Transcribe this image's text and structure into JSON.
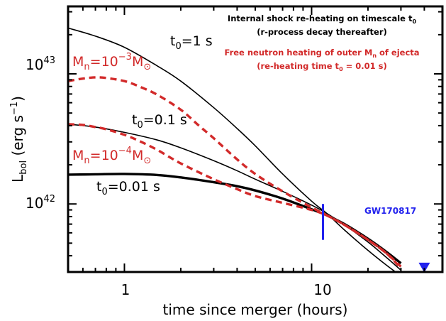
{
  "chart_data": {
    "type": "line",
    "xscale": "log",
    "yscale": "log",
    "xlim": [
      0.5,
      50
    ],
    "ylim": [
      3e+41,
      3.3e+43
    ],
    "xlabel": "time since merger (hours)",
    "ylabel": {
      "main": "L",
      "sub": "bol",
      "unit": "(erg s",
      "unit_sup": "−1",
      "unit_close": ")"
    },
    "xticks": [
      {
        "value": 1,
        "label": "1"
      },
      {
        "value": 10,
        "label": "10"
      }
    ],
    "yticks": [
      {
        "value": 1e+42,
        "base": "10",
        "exp": "42"
      },
      {
        "value": 1e+43,
        "base": "10",
        "exp": "43"
      }
    ],
    "series": [
      {
        "color": "#000000",
        "style": "solid",
        "width": 1.6,
        "x": [
          0.5,
          0.7,
          1,
          1.5,
          2,
          3,
          4,
          5,
          7,
          10,
          12,
          15,
          20,
          25,
          30
        ],
        "y": [
          2.25e+43,
          1.95e+43,
          1.6e+43,
          1.15e+43,
          8.8e+42,
          5.5e+42,
          3.8e+42,
          2.8e+42,
          1.7e+42,
          1.05e+42,
          8.5e+41,
          6.3e+41,
          4.4e+41,
          3.4e+41,
          2.8e+41
        ]
      },
      {
        "color": "#000000",
        "style": "solid",
        "width": 1.6,
        "x": [
          0.5,
          0.7,
          1,
          1.5,
          2,
          3,
          4,
          5,
          7,
          10,
          12,
          15,
          20,
          25,
          30
        ],
        "y": [
          4.1e+42,
          3.9e+42,
          3.55e+42,
          3.1e+42,
          2.7e+42,
          2.15e+42,
          1.8e+42,
          1.55e+42,
          1.25e+42,
          9.8e+41,
          8.5e+41,
          6.9e+41,
          5.1e+41,
          3.9e+41,
          3.1e+41
        ]
      },
      {
        "color": "#000000",
        "style": "solid",
        "width": 3.4,
        "x": [
          0.5,
          0.7,
          1,
          1.5,
          2,
          3,
          4,
          5,
          7,
          10,
          12,
          15,
          20,
          25,
          30
        ],
        "y": [
          1.68e+42,
          1.69e+42,
          1.7e+42,
          1.67e+42,
          1.6e+42,
          1.47e+42,
          1.37e+42,
          1.27e+42,
          1.1e+42,
          9.1e+41,
          8.2e+41,
          7e+41,
          5.4e+41,
          4.3e+41,
          3.5e+41
        ]
      },
      {
        "color": "#d22a2a",
        "style": "dashed",
        "width": 3.4,
        "x": [
          0.5,
          0.6,
          0.7,
          0.8,
          1,
          1.2,
          1.5,
          2,
          2.5,
          3,
          4,
          5,
          7,
          10,
          12,
          15,
          20,
          25,
          30
        ],
        "y": [
          8.8e+42,
          9.2e+42,
          9.4e+42,
          9.3e+42,
          8.8e+42,
          8e+42,
          6.9e+42,
          5.3e+42,
          4e+42,
          3.2e+42,
          2.2e+42,
          1.7e+42,
          1.25e+42,
          9.4e+41,
          8.2e+41,
          6.9e+41,
          5.3e+41,
          4.2e+41,
          3.2e+41
        ]
      },
      {
        "color": "#d22a2a",
        "style": "dashed",
        "width": 3.4,
        "x": [
          0.5,
          0.6,
          0.7,
          0.8,
          1,
          1.2,
          1.5,
          2,
          3,
          4,
          5,
          7,
          10,
          12,
          15,
          20,
          25,
          30
        ],
        "y": [
          4.1e+42,
          4.05e+42,
          3.9e+42,
          3.75e+42,
          3.4e+42,
          3.05e+42,
          2.6e+42,
          2.05e+42,
          1.55e+42,
          1.3e+42,
          1.15e+42,
          1.02e+42,
          9e+41,
          8.2e+41,
          6.9e+41,
          5.3e+41,
          4.2e+41,
          3.3e+41
        ]
      }
    ],
    "curve_labels": [
      {
        "text": "t",
        "sub": "0",
        "rest": "=1  s",
        "color": "#000000"
      },
      {
        "text": "M",
        "sub": "n",
        "rest": "=10",
        "sup": "−3",
        "rest2": "M",
        "sub2": "⊙",
        "color": "#d22a2a"
      },
      {
        "text": "t",
        "sub": "0",
        "rest": "=0.1  s",
        "color": "#000000"
      },
      {
        "text": "M",
        "sub": "n",
        "rest": "=10",
        "sup": "−4",
        "rest2": "M",
        "sub2": "⊙",
        "color": "#d22a2a"
      },
      {
        "text": "t",
        "sub": "0",
        "rest": "=0.01  s",
        "color": "#000000"
      }
    ],
    "annotations": {
      "black_line1": "Internal shock re-heating on timescale t",
      "black_line1_sub": "0",
      "black_line2": "(r-process decay thereafter)",
      "red_line1": "Free neutron heating of outer M",
      "red_line1_sub": "n",
      "red_line1_rest": " of ejecta",
      "red_line2": "(re-heating time t",
      "red_line2_sub": "0",
      "red_line2_rest": " = 0.01 s)",
      "black_color": "#000000",
      "red_color": "#d22a2a"
    },
    "observation": {
      "label": "GW170817",
      "color": "#2222ee",
      "bar_x": 11.5,
      "bar_y": [
        5.3e+41,
        1e+42
      ],
      "limit_x": 40,
      "limit_y": 3.2e+41
    }
  }
}
